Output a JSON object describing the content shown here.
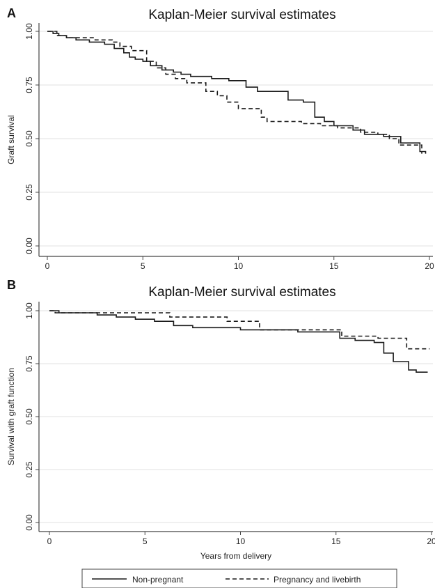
{
  "chart_data": [
    {
      "panel": "A",
      "type": "line",
      "title": "Kaplan-Meier survival estimates",
      "xlabel": "",
      "ylabel": "Graft survival",
      "xlim": [
        0,
        20
      ],
      "ylim": [
        0,
        1
      ],
      "xticks": [
        "0",
        "5",
        "10",
        "15",
        "20"
      ],
      "yticks": [
        "0.00",
        "0.25",
        "0.50",
        "0.75",
        "1.00"
      ],
      "grid": "horizontal",
      "series": [
        {
          "name": "Non-pregnant",
          "style": "solid",
          "step": true,
          "x": [
            0,
            0.3,
            0.6,
            1.0,
            1.5,
            2.2,
            3.0,
            3.5,
            4.0,
            4.3,
            4.6,
            5.0,
            5.4,
            6.0,
            6.6,
            7.0,
            7.5,
            8.0,
            8.6,
            9.0,
            9.5,
            10.4,
            11.0,
            12.0,
            12.6,
            13.4,
            14.0,
            14.5,
            15.0,
            16.0,
            16.6,
            17.6,
            18.5,
            19.5,
            19.8
          ],
          "y": [
            1.0,
            0.99,
            0.98,
            0.97,
            0.96,
            0.95,
            0.94,
            0.92,
            0.9,
            0.88,
            0.87,
            0.86,
            0.84,
            0.82,
            0.81,
            0.8,
            0.79,
            0.79,
            0.78,
            0.78,
            0.77,
            0.74,
            0.72,
            0.72,
            0.68,
            0.67,
            0.6,
            0.58,
            0.56,
            0.54,
            0.52,
            0.51,
            0.48,
            0.44,
            0.43
          ]
        },
        {
          "name": "Pregnancy and livebirth",
          "style": "dashed",
          "step": true,
          "x": [
            0,
            0.5,
            1.0,
            2.5,
            3.4,
            3.8,
            4.4,
            5.2,
            5.7,
            6.2,
            6.7,
            7.3,
            8.3,
            8.9,
            9.4,
            10.0,
            11.2,
            11.5,
            13.3,
            14.3,
            15.2,
            16.4,
            17.3,
            17.9,
            18.4,
            19.6
          ],
          "y": [
            1.0,
            0.98,
            0.97,
            0.96,
            0.95,
            0.93,
            0.91,
            0.86,
            0.83,
            0.8,
            0.78,
            0.76,
            0.72,
            0.7,
            0.67,
            0.64,
            0.6,
            0.58,
            0.57,
            0.56,
            0.55,
            0.53,
            0.52,
            0.5,
            0.47,
            0.43
          ]
        }
      ]
    },
    {
      "panel": "B",
      "type": "line",
      "title": "Kaplan-Meier survival estimates",
      "xlabel": "Years from delivery",
      "ylabel": "Survival with graft function",
      "xlim": [
        0,
        20
      ],
      "ylim": [
        0,
        1
      ],
      "xticks": [
        "0",
        "5",
        "10",
        "15",
        "20"
      ],
      "yticks": [
        "0.00",
        "0.25",
        "0.50",
        "0.75",
        "1.00"
      ],
      "grid": "horizontal",
      "series": [
        {
          "name": "Non-pregnant",
          "style": "solid",
          "step": true,
          "x": [
            0,
            0.5,
            2.5,
            3.5,
            4.5,
            5.5,
            6.5,
            7.5,
            10.0,
            13.0,
            15.2,
            16.0,
            17.0,
            17.5,
            18.0,
            18.8,
            19.2,
            19.8
          ],
          "y": [
            1.0,
            0.99,
            0.98,
            0.97,
            0.96,
            0.95,
            0.93,
            0.92,
            0.91,
            0.9,
            0.87,
            0.86,
            0.85,
            0.8,
            0.76,
            0.72,
            0.71,
            0.71
          ]
        },
        {
          "name": "Pregnancy and livebirth",
          "style": "dashed",
          "step": true,
          "x": [
            0,
            0.3,
            6.3,
            9.3,
            11.0,
            15.3,
            17.2,
            18.7,
            19.9
          ],
          "y": [
            1.0,
            0.99,
            0.97,
            0.95,
            0.91,
            0.88,
            0.87,
            0.82,
            0.82
          ]
        }
      ]
    }
  ],
  "legend": {
    "position": "bottom",
    "entries": [
      {
        "name": "Non-pregnant",
        "style": "solid"
      },
      {
        "name": "Pregnancy and livebirth",
        "style": "dashed"
      }
    ]
  },
  "colors": {
    "line": "#1a1a1a",
    "axis": "#444444",
    "grid": "#e2e2e2",
    "background": "#ffffff"
  }
}
